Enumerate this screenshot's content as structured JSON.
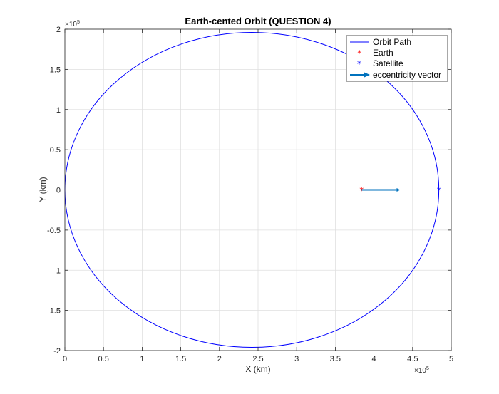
{
  "chart_data": {
    "type": "line",
    "title": "Earth-cented Orbit (QUESTION 4)",
    "xlabel": "X (km)",
    "ylabel": "Y (km)",
    "x_multiplier": "×10",
    "x_exponent": "5",
    "y_multiplier": "×10",
    "y_exponent": "5",
    "xlim": [
      0,
      500000
    ],
    "ylim": [
      -200000,
      200000
    ],
    "grid": true,
    "legend_position": "top-right",
    "x_ticks": [
      {
        "value": 0,
        "label": "0"
      },
      {
        "value": 50000,
        "label": "0.5"
      },
      {
        "value": 100000,
        "label": "1"
      },
      {
        "value": 150000,
        "label": "1.5"
      },
      {
        "value": 200000,
        "label": "2"
      },
      {
        "value": 250000,
        "label": "2.5"
      },
      {
        "value": 300000,
        "label": "3"
      },
      {
        "value": 350000,
        "label": "3.5"
      },
      {
        "value": 400000,
        "label": "4"
      },
      {
        "value": 450000,
        "label": "4.5"
      },
      {
        "value": 500000,
        "label": "5"
      }
    ],
    "y_ticks": [
      {
        "value": 200000,
        "label": "2"
      },
      {
        "value": 150000,
        "label": "1.5"
      },
      {
        "value": 100000,
        "label": "1"
      },
      {
        "value": 50000,
        "label": "0.5"
      },
      {
        "value": 0,
        "label": "0"
      },
      {
        "value": -50000,
        "label": "-0.5"
      },
      {
        "value": -100000,
        "label": "-1"
      },
      {
        "value": -150000,
        "label": "-1.5"
      },
      {
        "value": -200000,
        "label": "-2"
      }
    ],
    "series": [
      {
        "name": "Orbit Path",
        "kind": "ellipse",
        "color": "#0000ff",
        "center_x": 242000,
        "center_y": 0,
        "semi_major": 242000,
        "semi_minor": 196000
      },
      {
        "name": "Earth",
        "kind": "marker",
        "marker": "*",
        "color": "#ff0000",
        "x": 384000,
        "y": 0
      },
      {
        "name": "Satellite",
        "kind": "marker",
        "marker": "*",
        "color": "#0000ff",
        "x": 484000,
        "y": 0
      },
      {
        "name": "eccentricity vector",
        "kind": "arrow",
        "color": "#0072bd",
        "x_start": 384000,
        "y_start": 0,
        "x_end": 434000,
        "y_end": 0
      }
    ]
  }
}
